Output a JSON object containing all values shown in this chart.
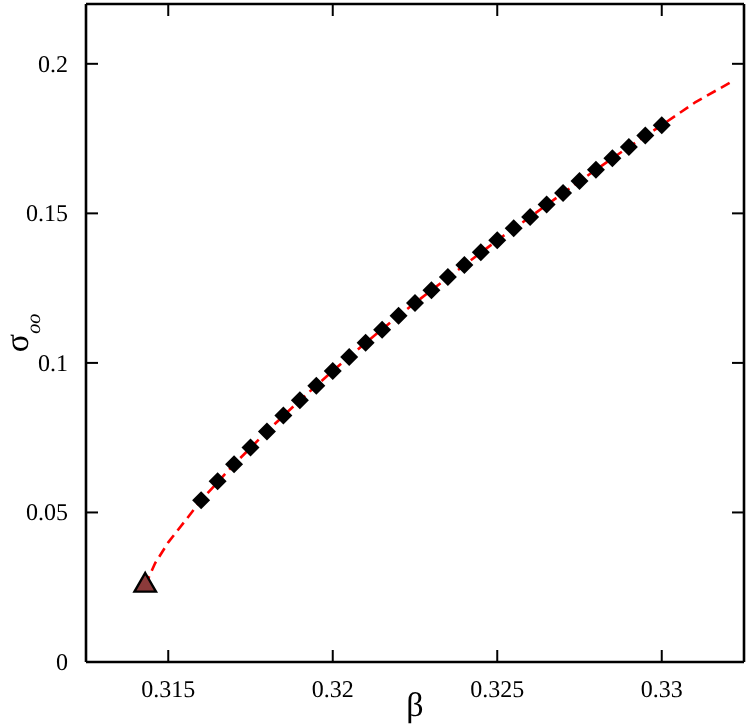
{
  "chart_data": {
    "type": "scatter",
    "xlabel": "β",
    "ylabel": "σ$_{oo}$",
    "xlim": [
      0.3125,
      0.3325
    ],
    "ylim": [
      0,
      0.22
    ],
    "xticks": [
      0.315,
      0.32,
      0.325,
      0.33
    ],
    "yticks": [
      0,
      0.05,
      0.1,
      0.15,
      0.2
    ],
    "grid": false,
    "series": [
      {
        "type": "line",
        "color": "#ff0000",
        "line_style": "dashed",
        "marker": "none",
        "x": [
          0.3143,
          0.3146,
          0.315,
          0.3155,
          0.316,
          0.317,
          0.318,
          0.319,
          0.32,
          0.321,
          0.322,
          0.323,
          0.324,
          0.325,
          0.326,
          0.327,
          0.328,
          0.329,
          0.33,
          0.331,
          0.3322
        ],
        "values": [
          0.0256,
          0.033,
          0.04,
          0.047,
          0.0541,
          0.0661,
          0.0771,
          0.0875,
          0.0973,
          0.1067,
          0.1158,
          0.1243,
          0.1327,
          0.141,
          0.1488,
          0.1568,
          0.1646,
          0.1722,
          0.1795,
          0.187,
          0.1945
        ]
      },
      {
        "color": "#000000",
        "marker": "diamond",
        "x": [
          0.316,
          0.3165,
          0.317,
          0.3175,
          0.318,
          0.3185,
          0.319,
          0.3195,
          0.32,
          0.3205,
          0.321,
          0.3215,
          0.322,
          0.3225,
          0.323,
          0.3235,
          0.324,
          0.3245,
          0.325,
          0.3255,
          0.326,
          0.3265,
          0.327,
          0.3275,
          0.328,
          0.3285,
          0.329,
          0.3295,
          0.33
        ],
        "values": [
          0.0541,
          0.0604,
          0.0661,
          0.0717,
          0.0771,
          0.0824,
          0.0875,
          0.0924,
          0.0973,
          0.102,
          0.1067,
          0.1111,
          0.1158,
          0.12,
          0.1243,
          0.1287,
          0.1327,
          0.137,
          0.141,
          0.145,
          0.1488,
          0.153,
          0.1568,
          0.1608,
          0.1646,
          0.1684,
          0.1722,
          0.176,
          0.1795
        ]
      },
      {
        "color": "#8b3a3a",
        "marker": "triangle",
        "x": [
          0.3143
        ],
        "values": [
          0.0256
        ]
      }
    ]
  }
}
